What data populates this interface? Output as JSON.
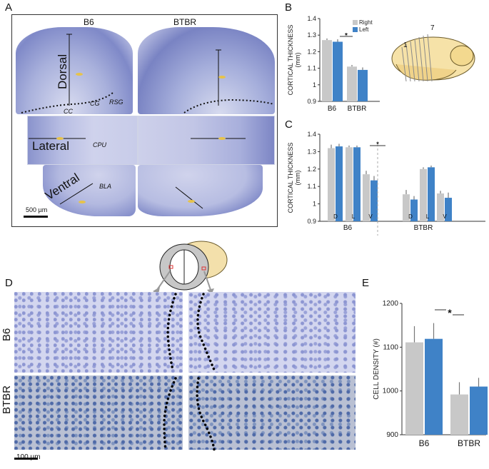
{
  "panels": {
    "A": "A",
    "B": "B",
    "C": "C",
    "D": "D",
    "E": "E"
  },
  "panel_a": {
    "col_b6": "B6",
    "col_btbr": "BTBR",
    "region_dorsal": "Dorsal",
    "region_lateral": "Lateral",
    "region_ventral": "Ventral",
    "label_cg": "CG",
    "label_rsg": "RSG",
    "label_cc": "CC",
    "label_cpu": "CPU",
    "label_bla": "BLA",
    "scale_bar": "500 µm"
  },
  "panel_b_inset": {
    "num_1": "1",
    "num_7": "7"
  },
  "panel_d": {
    "row_b6": "B6",
    "row_btbr": "BTBR",
    "scale_bar": "100 µm"
  },
  "colors": {
    "right": "#c8c8c8",
    "left": "#3f82c7",
    "tissue_blue": "#8e98cf",
    "tissue_light": "#c3c8e6",
    "btbr_stain": "#aeb7cf"
  },
  "chart_data": [
    {
      "id": "B",
      "type": "bar",
      "categories": [
        "B6",
        "BTBR"
      ],
      "series": [
        {
          "name": "Right",
          "values": [
            1.27,
            1.11
          ],
          "errors": [
            0.01,
            0.01
          ]
        },
        {
          "name": "Left",
          "values": [
            1.26,
            1.09
          ],
          "errors": [
            0.015,
            0.015
          ]
        }
      ],
      "ylabel": "CORTICAL THICKNESS",
      "yunit": "(mm)",
      "ylim": [
        0.9,
        1.4
      ],
      "yticks": [
        "0.9",
        "1",
        "1.1",
        "1.2",
        "1.3",
        "1.4"
      ],
      "significance": "*",
      "legend": "top-right"
    },
    {
      "id": "C",
      "type": "bar",
      "groups": [
        "B6",
        "BTBR"
      ],
      "categories": [
        "D",
        "L",
        "V",
        "D",
        "L",
        "V"
      ],
      "series": [
        {
          "name": "Right",
          "values": [
            1.32,
            1.325,
            1.17,
            1.055,
            1.2,
            1.06
          ],
          "errors": [
            0.02,
            0.01,
            0.02,
            0.025,
            0.01,
            0.015
          ]
        },
        {
          "name": "Left",
          "values": [
            1.33,
            1.325,
            1.135,
            1.025,
            1.21,
            1.035
          ],
          "errors": [
            0.015,
            0.01,
            0.025,
            0.02,
            0.01,
            0.03
          ]
        }
      ],
      "ylabel": "CORTICAL THICKNESS",
      "yunit": "(mm)",
      "ylim": [
        0.9,
        1.4
      ],
      "yticks": [
        "0.9",
        "1",
        "1.1",
        "1.2",
        "1.3",
        "1.4"
      ],
      "significance": "*"
    },
    {
      "id": "E",
      "type": "bar",
      "categories": [
        "B6",
        "BTBR"
      ],
      "series": [
        {
          "name": "Right",
          "values": [
            1111,
            992
          ],
          "errors": [
            37,
            28
          ]
        },
        {
          "name": "Left",
          "values": [
            1119,
            1010
          ],
          "errors": [
            36,
            20
          ]
        }
      ],
      "ylabel": "CELL DENSITY (#)",
      "ylim": [
        900,
        1200
      ],
      "yticks": [
        "900",
        "1000",
        "1100",
        "1200"
      ],
      "significance": "*"
    }
  ]
}
